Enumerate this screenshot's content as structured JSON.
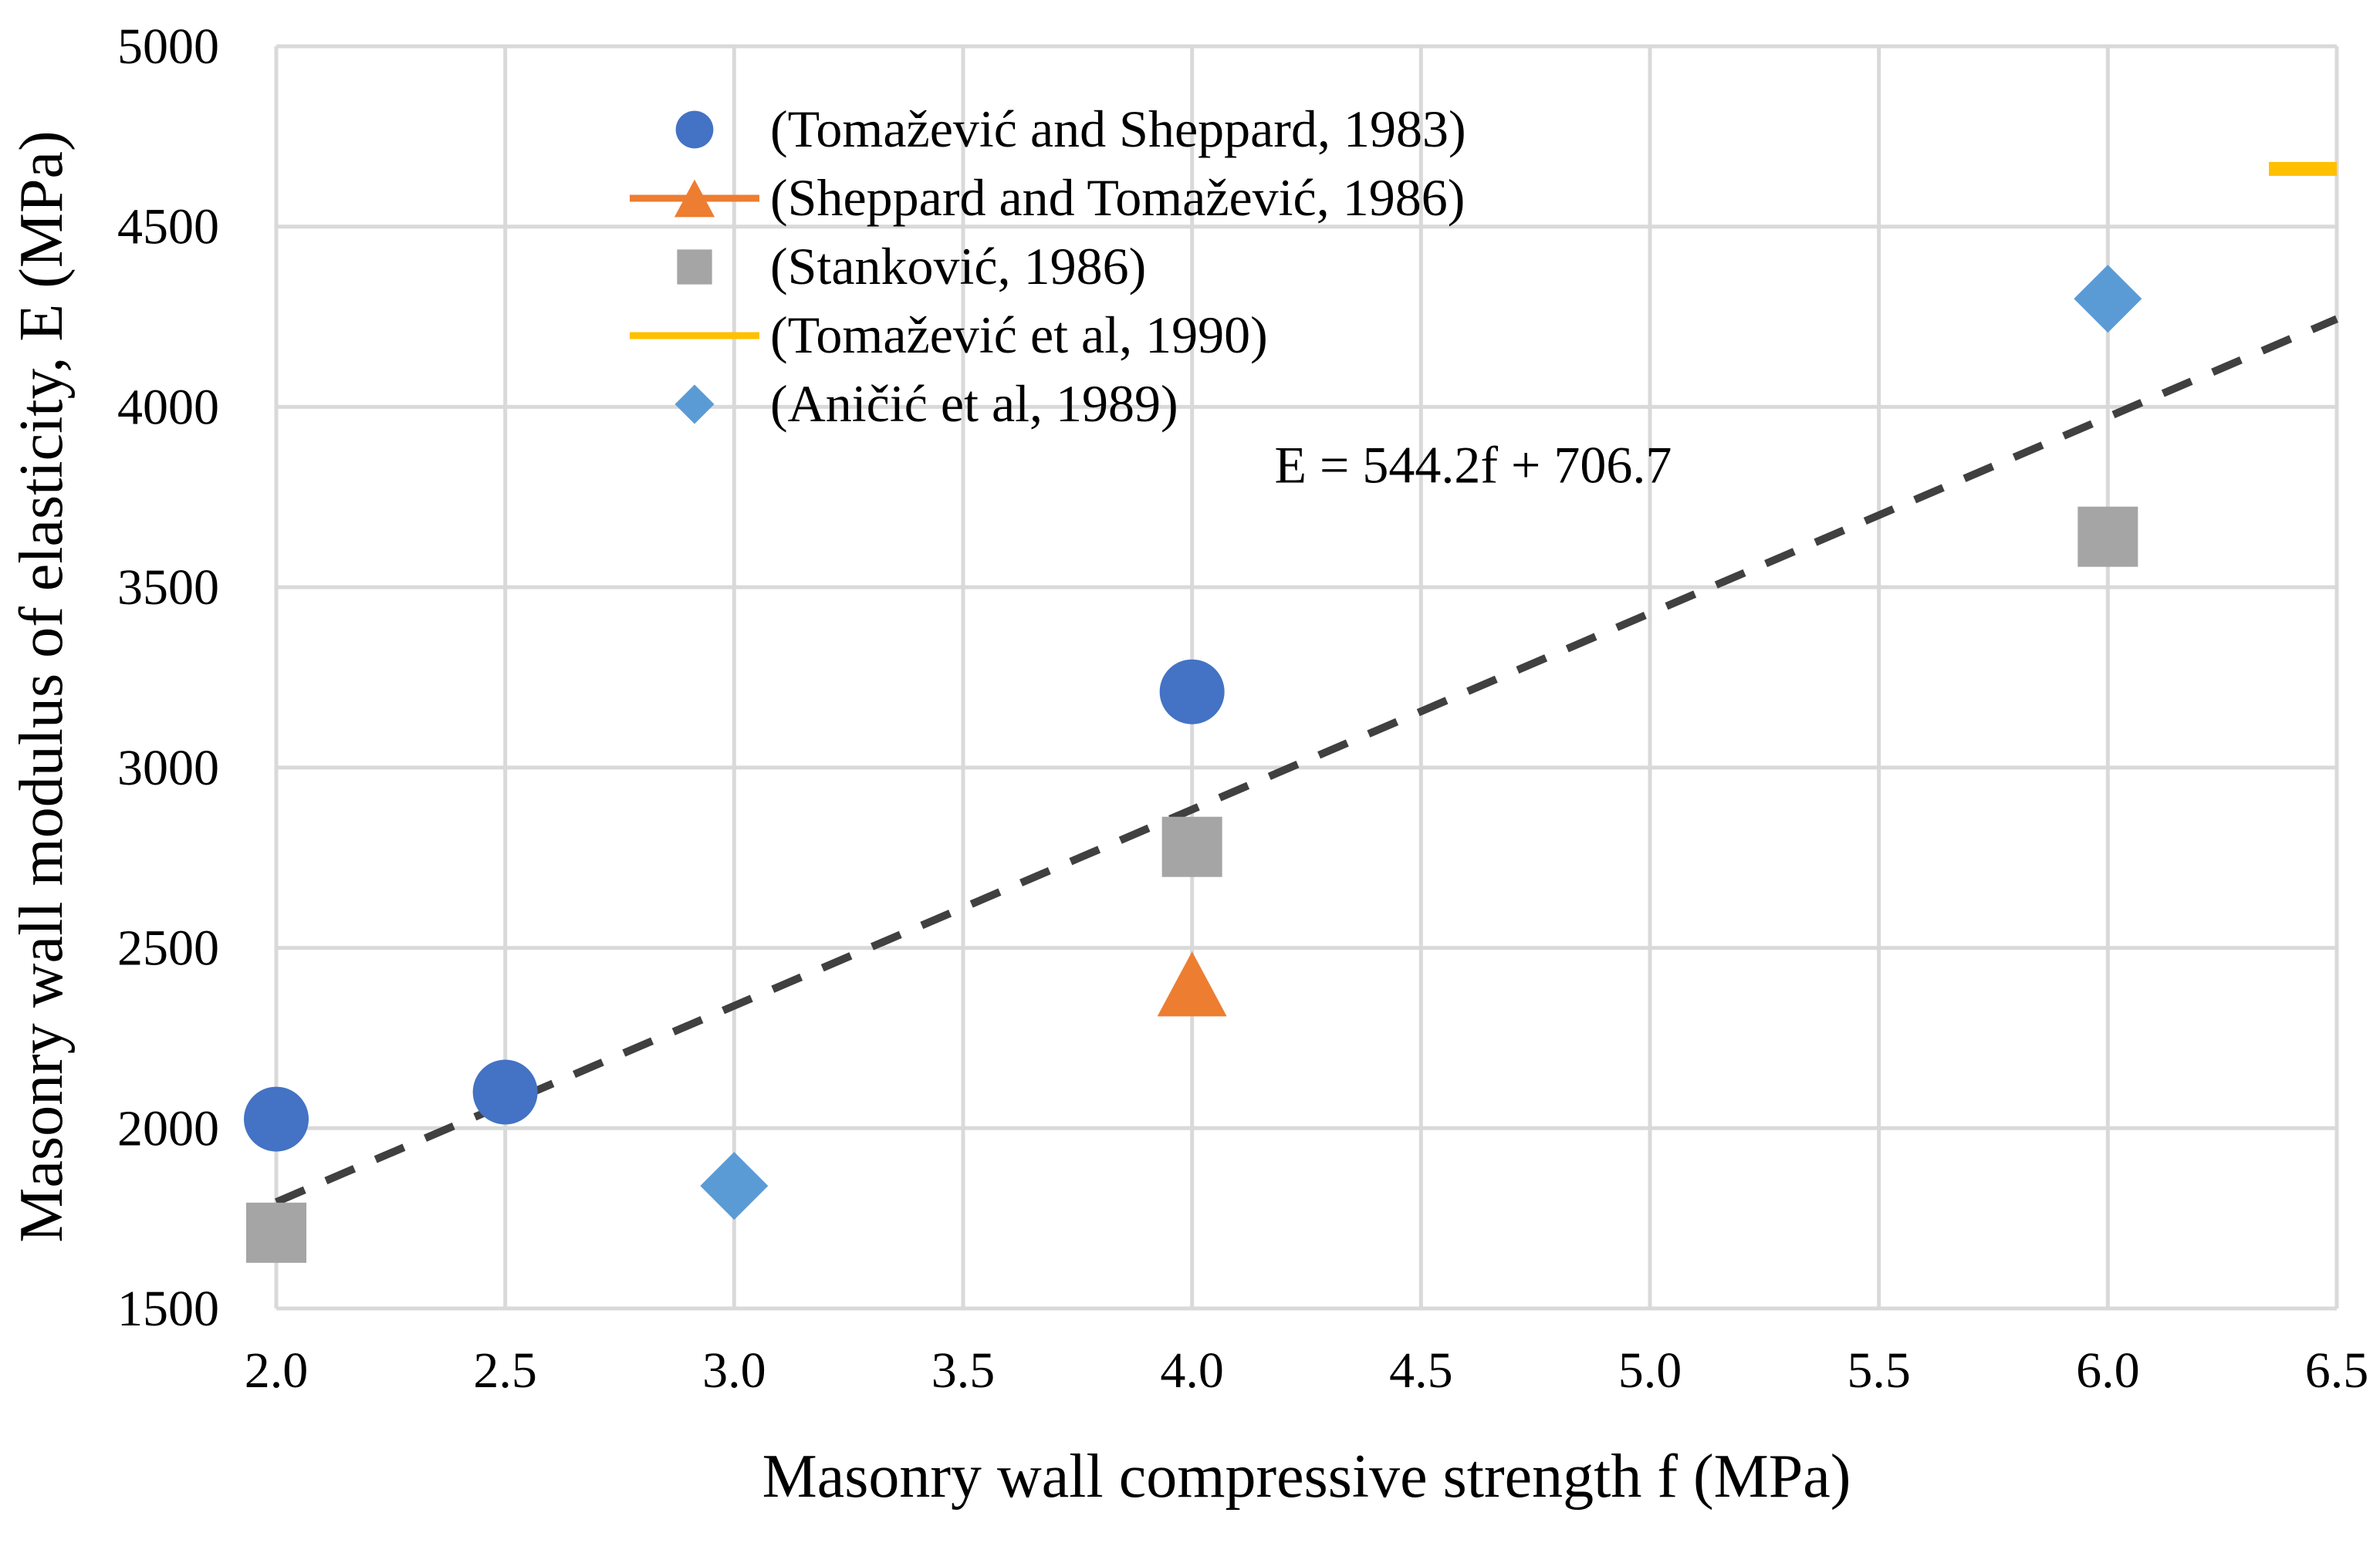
{
  "chart_data": {
    "type": "scatter",
    "title": "",
    "xlabel": "Masonry wall compressive strength f (MPa)",
    "ylabel": "Masonry wall modulus of elasticity, E (MPa)",
    "xlim": [
      2.0,
      6.5
    ],
    "ylim": [
      1500,
      5000
    ],
    "xticks": [
      "2.0",
      "2.5",
      "3.0",
      "3.5",
      "4.0",
      "4.5",
      "5.0",
      "5.5",
      "6.0",
      "6.5"
    ],
    "yticks": [
      "1500",
      "2000",
      "2500",
      "3000",
      "3500",
      "4000",
      "4500",
      "5000"
    ],
    "grid": true,
    "legend_position": "top-left",
    "series": [
      {
        "name": "(Tomažević and Sheppard, 1983)",
        "marker": "circle",
        "color": "#4472C4",
        "points": [
          [
            2.0,
            2025
          ],
          [
            2.5,
            2100
          ],
          [
            4.0,
            3210
          ]
        ]
      },
      {
        "name": "(Sheppard and Tomažević, 1986)",
        "marker": "triangle",
        "color": "#ED7D31",
        "points": [
          [
            4.0,
            2400
          ]
        ]
      },
      {
        "name": "(Stanković, 1986)",
        "marker": "square",
        "color": "#A5A5A5",
        "points": [
          [
            2.0,
            1710
          ],
          [
            4.0,
            2780
          ],
          [
            6.0,
            3640
          ]
        ]
      },
      {
        "name": "(Tomažević et al, 1990)",
        "marker": "dash",
        "color": "#FFC000",
        "points": [
          [
            6.5,
            4660
          ]
        ]
      },
      {
        "name": "(Aničić et al, 1989)",
        "marker": "diamond",
        "color": "#5B9BD5",
        "points": [
          [
            3.0,
            1840
          ],
          [
            6.0,
            4300
          ]
        ]
      }
    ],
    "trendline": {
      "slope": 544.2,
      "intercept": 706.7,
      "color": "#404040",
      "x_range": [
        2.0,
        6.5
      ],
      "label": "E = 544.2f + 706.7",
      "label_anchor": [
        4.18,
        3790
      ]
    }
  }
}
